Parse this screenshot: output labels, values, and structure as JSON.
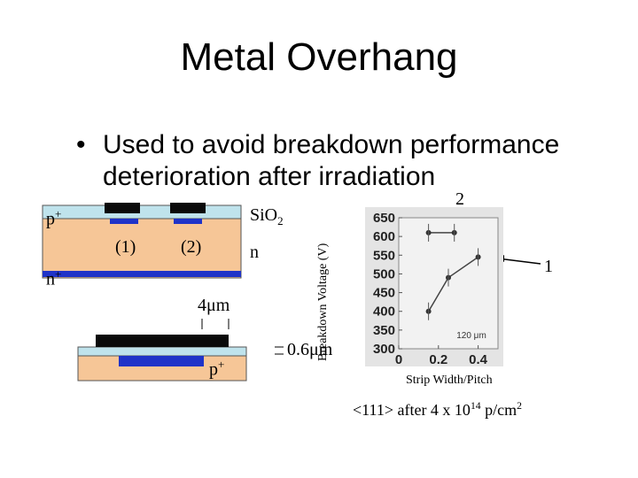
{
  "slide": {
    "title": "Metal Overhang",
    "bullet": "Used to avoid breakdown performance deterioration after irradiation"
  },
  "diagram": {
    "p_plus_label": "p",
    "p_plus_sup": "+",
    "n_plus_label": "n",
    "n_plus_sup": "+",
    "sio2_label": "SiO",
    "sio2_sub": "2",
    "n_label": "n",
    "label_1": "(1)",
    "label_2": "(2)",
    "width_label": "4μm",
    "p_plus_bottom_label": "p",
    "p_plus_bottom_sup": "+",
    "overhang_label": "0.6μm",
    "colors": {
      "substrate": "#f6c697",
      "oxide": "#bfe3ec",
      "metal": "#0a0a0a",
      "implant": "#1f33c8"
    }
  },
  "chart_data": {
    "type": "line",
    "ylabel": "Breakdown Voltage (V)",
    "xlabel": "Strip Width/Pitch",
    "y_ticks": [
      "650",
      "600",
      "550",
      "500",
      "450",
      "400",
      "350",
      "300"
    ],
    "x_ticks": [
      "0",
      "0.2",
      "0.4"
    ],
    "ylim": [
      300,
      650
    ],
    "xlim": [
      0,
      0.5
    ],
    "inset_label": "120 μm",
    "series": [
      {
        "points": [
          [
            0.15,
            400
          ],
          [
            0.25,
            490
          ],
          [
            0.4,
            545
          ]
        ]
      },
      {
        "points": [
          [
            0.15,
            610
          ],
          [
            0.28,
            610
          ]
        ]
      }
    ],
    "annotation_1": "1",
    "annotation_2": "2",
    "caption_main": "<111> after 4 x 10",
    "caption_exp": "14",
    "caption_unit": " p/cm",
    "caption_unit_exp": "2"
  }
}
